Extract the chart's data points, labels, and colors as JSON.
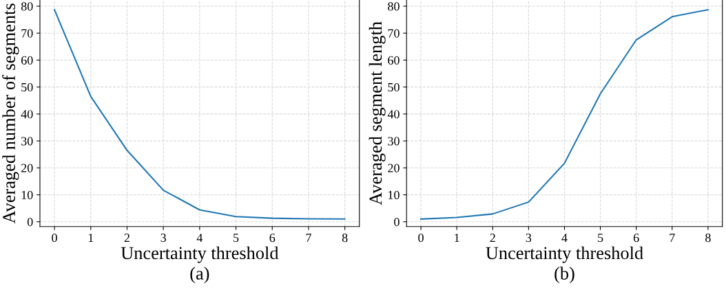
{
  "chart_data": [
    {
      "type": "line",
      "xlabel": "Uncertainty threshold",
      "ylabel": "Averaged number of segments",
      "annotations": [
        "(a)"
      ],
      "x": [
        0,
        1,
        2,
        3,
        4,
        5,
        6,
        7,
        8
      ],
      "series": [
        {
          "color": "#1f77b4",
          "values": [
            78.7,
            46.5,
            26.5,
            11.7,
            4.4,
            1.9,
            1.3,
            1.1,
            1.0
          ]
        }
      ],
      "xlim": [
        -0.4,
        8.4
      ],
      "ylim": [
        -1.8,
        82.3
      ],
      "xticks": [
        0,
        1,
        2,
        3,
        4,
        5,
        6,
        7,
        8
      ],
      "yticks": [
        0,
        10,
        20,
        30,
        40,
        50,
        60,
        70,
        80
      ],
      "grid": true,
      "line_style": "solid"
    },
    {
      "type": "line",
      "xlabel": "Uncertainty threshold",
      "ylabel": "Averaged segment length",
      "annotations": [
        "(b)"
      ],
      "x": [
        0,
        1,
        2,
        3,
        4,
        5,
        6,
        7,
        8
      ],
      "series": [
        {
          "color": "#1f77b4",
          "values": [
            1.0,
            1.6,
            2.9,
            7.3,
            21.7,
            47.5,
            67.5,
            76.1,
            78.7
          ]
        }
      ],
      "xlim": [
        -0.4,
        8.4
      ],
      "ylim": [
        -1.8,
        82.3
      ],
      "xticks": [
        0,
        1,
        2,
        3,
        4,
        5,
        6,
        7,
        8
      ],
      "yticks": [
        0,
        10,
        20,
        30,
        40,
        50,
        60,
        70,
        80
      ],
      "grid": true,
      "line_style": "solid"
    }
  ]
}
